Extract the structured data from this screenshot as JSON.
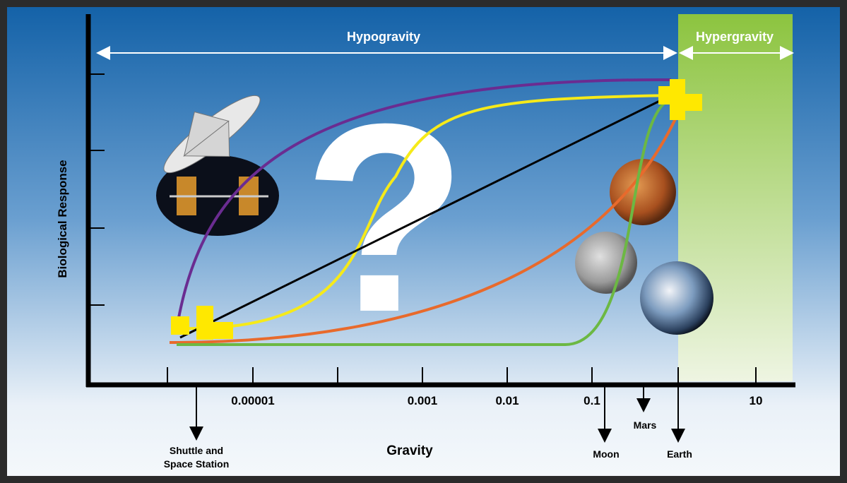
{
  "regions": {
    "hypogravity": "Hypogravity",
    "hypergravity": "Hypergravity"
  },
  "axes": {
    "x_title": "Gravity",
    "y_title": "Biological Response",
    "x_tick_labels": [
      "0.00001",
      "0.001",
      "0.01",
      "0.1",
      "10"
    ]
  },
  "question_mark": "?",
  "markers": [
    {
      "lines": [
        "Shuttle and",
        "Space Station"
      ]
    },
    {
      "lines": [
        "Moon"
      ]
    },
    {
      "lines": [
        "Mars"
      ]
    },
    {
      "lines": [
        "Earth"
      ]
    }
  ]
}
